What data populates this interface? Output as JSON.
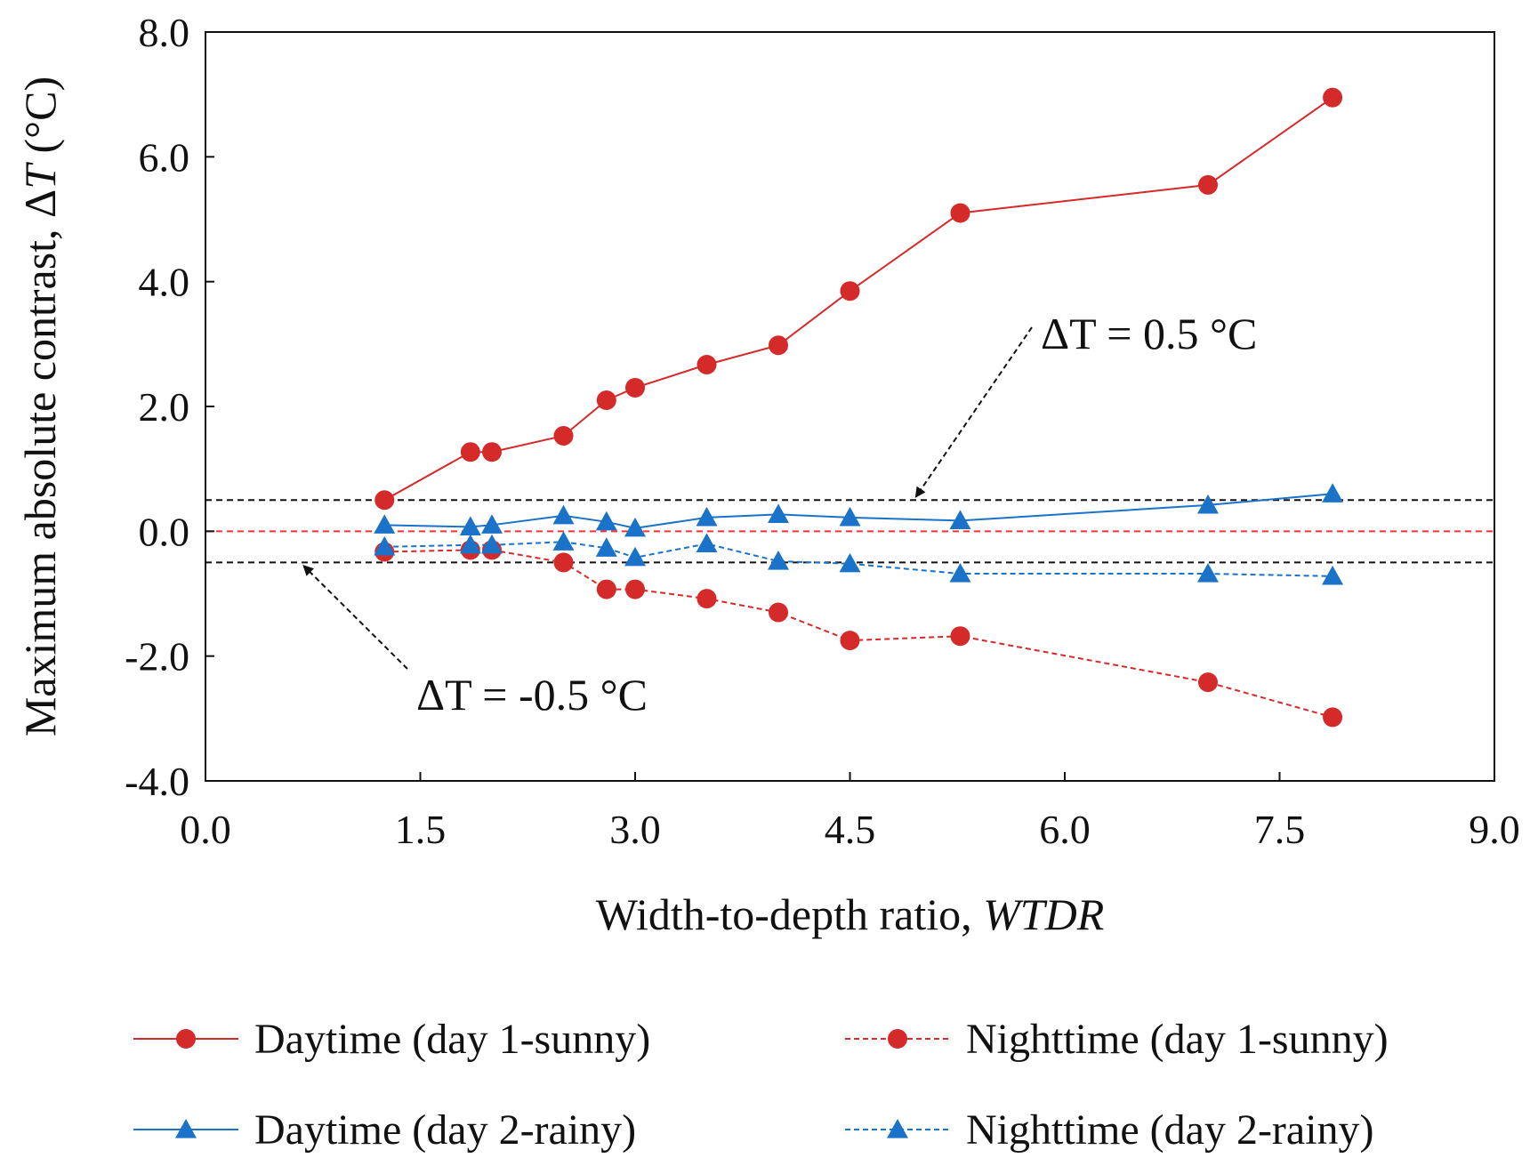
{
  "chart_data": {
    "type": "line",
    "xlabel": "Width-to-depth ratio, ",
    "xlabel_italic": "WTDR",
    "ylabel": "Maximum  absolute contrast, Δ",
    "ylabel_italic": "T",
    "ylabel_unit": " (°C)",
    "xlim": [
      0,
      9
    ],
    "ylim": [
      -4,
      8
    ],
    "xticks": [
      0,
      1.5,
      3,
      4.5,
      6,
      7.5,
      9
    ],
    "xtick_labels": [
      "0.0",
      "1.5",
      "3.0",
      "4.5",
      "6.0",
      "7.5",
      "9.0"
    ],
    "yticks": [
      -4,
      -2,
      0,
      2,
      4,
      6,
      8
    ],
    "ytick_labels": [
      "-4.0",
      "-2.0",
      "0.0",
      "2.0",
      "4.0",
      "6.0",
      "8.0"
    ],
    "grid": false,
    "legend_position": "bottom",
    "series": [
      {
        "name": "Daytime (day 1-sunny)",
        "color": "#d42a2a",
        "dashed": false,
        "marker": "circle",
        "x": [
          1.25,
          1.85,
          2.0,
          2.5,
          2.8,
          3.0,
          3.5,
          4.0,
          4.5,
          5.27,
          7.0,
          7.87
        ],
        "y": [
          0.5,
          1.27,
          1.27,
          1.53,
          2.1,
          2.3,
          2.67,
          2.98,
          3.85,
          5.1,
          5.55,
          6.95
        ]
      },
      {
        "name": "Nighttime (day 1-sunny)",
        "color": "#d42a2a",
        "dashed": true,
        "marker": "circle",
        "x": [
          1.25,
          1.85,
          2.0,
          2.5,
          2.8,
          3.0,
          3.5,
          4.0,
          4.5,
          5.27,
          7.0,
          7.87
        ],
        "y": [
          -0.33,
          -0.3,
          -0.3,
          -0.5,
          -0.93,
          -0.93,
          -1.08,
          -1.3,
          -1.75,
          -1.68,
          -2.42,
          -2.98
        ]
      },
      {
        "name": "Daytime (day 2-rainy)",
        "color": "#1a73c8",
        "dashed": false,
        "marker": "triangle",
        "x": [
          1.25,
          1.85,
          2.0,
          2.5,
          2.8,
          3.0,
          3.5,
          4.0,
          4.5,
          5.27,
          7.0,
          7.87
        ],
        "y": [
          0.1,
          0.07,
          0.1,
          0.25,
          0.15,
          0.05,
          0.22,
          0.27,
          0.22,
          0.17,
          0.42,
          0.6
        ]
      },
      {
        "name": "Nighttime (day 2-rainy)",
        "color": "#1a73c8",
        "dashed": true,
        "marker": "triangle",
        "x": [
          1.25,
          1.85,
          2.0,
          2.5,
          2.8,
          3.0,
          3.5,
          4.0,
          4.5,
          5.27,
          7.0,
          7.87
        ],
        "y": [
          -0.25,
          -0.22,
          -0.22,
          -0.17,
          -0.27,
          -0.42,
          -0.2,
          -0.48,
          -0.52,
          -0.68,
          -0.68,
          -0.72
        ]
      }
    ],
    "reference_lines": [
      {
        "y": 0.5,
        "color": "#111111",
        "dashed": true,
        "label": "ΔT = 0.5 °C"
      },
      {
        "y": 0.0,
        "color": "#ff3030",
        "dashed": true,
        "label": ""
      },
      {
        "y": -0.5,
        "color": "#111111",
        "dashed": true,
        "label": "ΔT = -0.5 °C"
      }
    ],
    "annotations": [
      {
        "text": "ΔT = 0.5 °C",
        "points_to": {
          "x": 4.9,
          "y": 0.5
        }
      },
      {
        "text": "ΔT = -0.5 °C",
        "points_to": {
          "x": 0.7,
          "y": -0.5
        }
      }
    ]
  }
}
